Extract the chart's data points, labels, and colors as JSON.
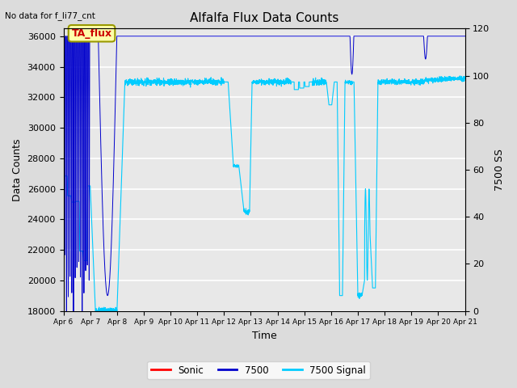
{
  "title": "Alfalfa Flux Data Counts",
  "xlabel": "Time",
  "ylabel_left": "Data Counts",
  "ylabel_right": "7500 SS",
  "top_left_text": "No data for f_li77_cnt",
  "annotation_text": "TA_flux",
  "ylim_left": [
    18000,
    36500
  ],
  "ylim_right": [
    0,
    120
  ],
  "yticks_left": [
    18000,
    20000,
    22000,
    24000,
    26000,
    28000,
    30000,
    32000,
    34000,
    36000
  ],
  "yticks_right": [
    0,
    20,
    40,
    60,
    80,
    100,
    120
  ],
  "xtick_labels": [
    "Apr 6",
    "Apr 7",
    "Apr 8",
    "Apr 9",
    "Apr 10",
    "Apr 11",
    "Apr 12",
    "Apr 13",
    "Apr 14",
    "Apr 15",
    "Apr 16",
    "Apr 17",
    "Apr 18",
    "Apr 19",
    "Apr 20",
    "Apr 21"
  ],
  "bg_color": "#dcdcdc",
  "plot_bg_color": "#dcdcdc",
  "inner_bg_color": "#e8e8e8",
  "grid_color": "#ffffff",
  "sonic_color": "#ff0000",
  "c7500_color": "#0000cc",
  "signal_color": "#00ccff",
  "legend_labels": [
    "Sonic",
    "7500",
    "7500 Signal"
  ],
  "annotation_bbox": {
    "boxstyle": "round,pad=0.3",
    "facecolor": "#ffffaa",
    "edgecolor": "#999900",
    "linewidth": 1.5
  }
}
